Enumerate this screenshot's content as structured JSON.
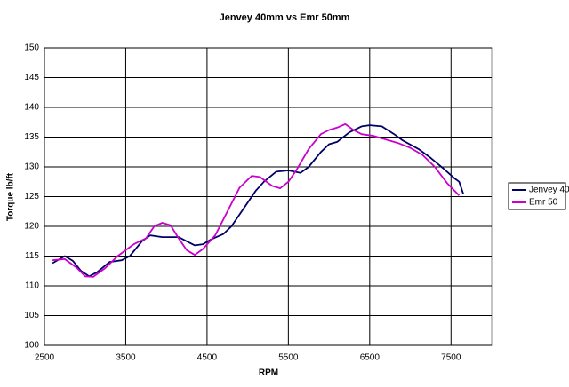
{
  "chart_data": {
    "type": "line",
    "title": "Jenvey 40mm vs Emr 50mm",
    "x_label": "RPM",
    "y_label": "Torque lb/ft",
    "xlim": [
      2500,
      8000
    ],
    "xticks": [
      2500,
      3500,
      4500,
      5500,
      6500,
      7500
    ],
    "ylim": [
      100,
      150
    ],
    "yticks": [
      100,
      105,
      110,
      115,
      120,
      125,
      130,
      135,
      140,
      145,
      150
    ],
    "grid": true,
    "legend": "right",
    "series": [
      {
        "name": "Jenvey 40",
        "color": "#000066",
        "x": [
          2600,
          2750,
          2850,
          2950,
          3050,
          3150,
          3300,
          3450,
          3550,
          3700,
          3800,
          3950,
          4150,
          4250,
          4350,
          4450,
          4550,
          4700,
          4800,
          4950,
          5100,
          5200,
          5350,
          5500,
          5650,
          5750,
          5900,
          6000,
          6100,
          6250,
          6400,
          6500,
          6650,
          6800,
          6900,
          7100,
          7250,
          7400,
          7550,
          7600,
          7650
        ],
        "values": [
          113.8,
          115,
          114.2,
          112.5,
          111.6,
          112.3,
          114,
          114.3,
          115,
          117.5,
          118.5,
          118.2,
          118.2,
          117.5,
          116.8,
          117,
          117.8,
          118.7,
          120,
          123,
          126,
          127.5,
          129.2,
          129.4,
          129,
          130,
          132.5,
          133.8,
          134.2,
          135.8,
          136.8,
          137,
          136.8,
          135.5,
          134.5,
          133,
          131.5,
          129.8,
          128,
          127.5,
          125.5
        ]
      },
      {
        "name": "Emr 50",
        "color": "#cc00cc",
        "x": [
          2600,
          2750,
          2900,
          3000,
          3100,
          3250,
          3400,
          3600,
          3750,
          3850,
          3950,
          4050,
          4150,
          4250,
          4350,
          4450,
          4600,
          4750,
          4900,
          5050,
          5150,
          5300,
          5400,
          5500,
          5600,
          5750,
          5900,
          6000,
          6100,
          6200,
          6300,
          6400,
          6550,
          6700,
          6850,
          7000,
          7150,
          7300,
          7450,
          7600
        ],
        "values": [
          114.3,
          114.5,
          113,
          111.6,
          111.5,
          113,
          115,
          117,
          118,
          120,
          120.6,
          120.2,
          118,
          116,
          115.2,
          116.2,
          118.5,
          122.5,
          126.5,
          128.5,
          128.3,
          126.8,
          126.4,
          127.5,
          129.5,
          133,
          135.5,
          136.2,
          136.6,
          137.2,
          136.2,
          135.5,
          135.2,
          134.6,
          134,
          133.2,
          132,
          130,
          127.3,
          125.2
        ]
      }
    ]
  }
}
